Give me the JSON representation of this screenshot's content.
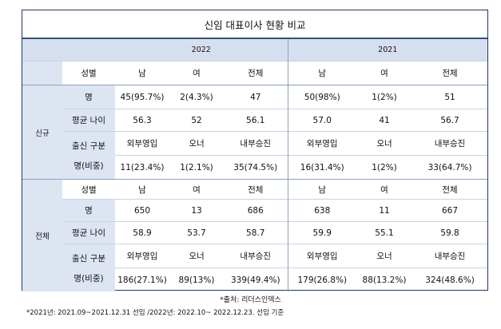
{
  "title": "신임 대표이사 현황 비교",
  "years": [
    "2022",
    "2021"
  ],
  "header_labels": {
    "gender": "성별",
    "male": "남",
    "female": "여",
    "total": "전체"
  },
  "new_hires": {
    "section_label": "신규",
    "count": {
      "label": "명",
      "values": [
        "45(95.7%)",
        "2(4.3%)",
        "47",
        "50(98%)",
        "1(2%)",
        "51"
      ]
    },
    "avg_age": {
      "label": "평균 나이",
      "values": [
        "56.3",
        "52",
        "56.1",
        "57.0",
        "41",
        "56.7"
      ]
    },
    "origin": {
      "label_line1": "출신 구분",
      "label_line2": "명(비중)",
      "categories": [
        "외부영입",
        "오너",
        "내부승진",
        "외부영입",
        "오너",
        "내부승진"
      ],
      "values": [
        "11(23.4%)",
        "1(2.1%)",
        "35(74.5%)",
        "16(31.4%)",
        "1(2%)",
        "33(64.7%)"
      ]
    }
  },
  "all": {
    "section_label": "전체",
    "count": {
      "label": "명",
      "values": [
        "650",
        "13",
        "686",
        "638",
        "11",
        "667"
      ]
    },
    "avg_age": {
      "label": "평균 나이",
      "values": [
        "58.9",
        "53.7",
        "58.7",
        "59.9",
        "55.1",
        "59.8"
      ]
    },
    "origin": {
      "label_line1": "출신 구분",
      "label_line2": "명(비중)",
      "categories": [
        "외부영입",
        "오너",
        "내부승진",
        "외부영입",
        "오너",
        "내부승진"
      ],
      "values": [
        "186(27.1%)",
        "89(13%)",
        "339(49.4%)",
        "179(26.8%)",
        "88(13.2%)",
        "324(48.6%)"
      ]
    }
  },
  "source_note": "*출처: 리더스인덱스",
  "footnote": "*2021년: 2021.09~2021.12.31 선임 /2022년: 2022.10~ 2022.12.23. 선임 기준",
  "colors": {
    "section_bg": "#dde5f2",
    "year_bg": "#d6dfef",
    "border": "#1f3a5f"
  }
}
